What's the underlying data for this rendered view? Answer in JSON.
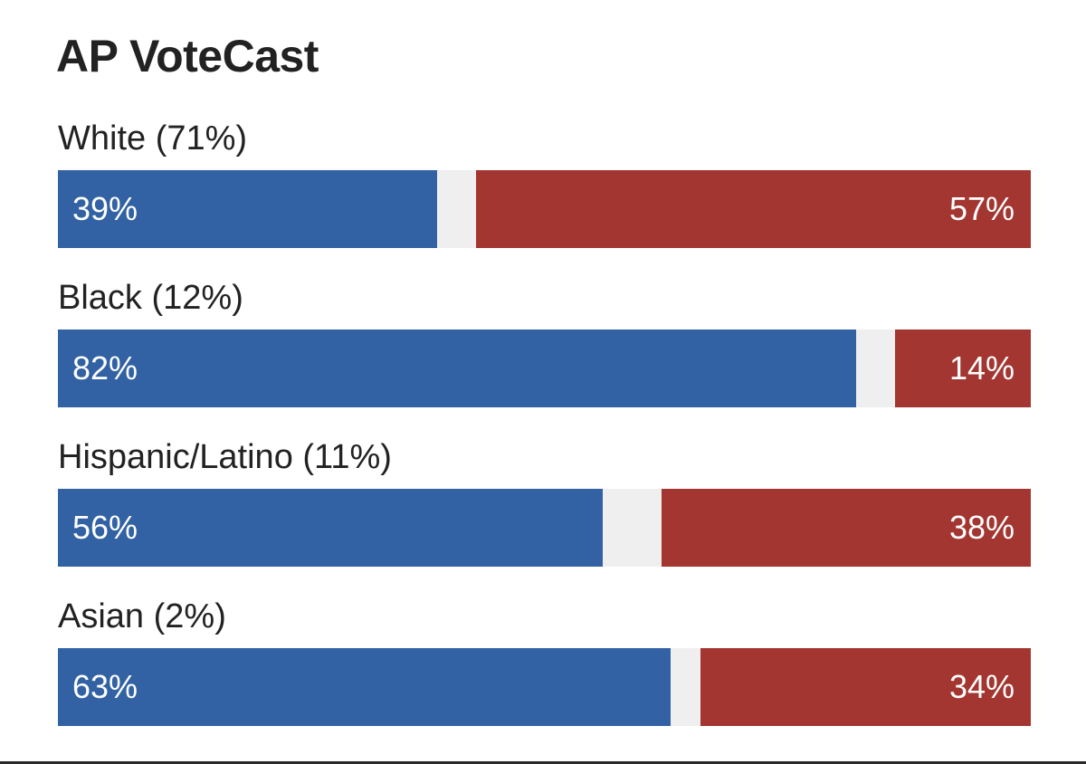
{
  "title": "AP VoteCast",
  "colors": {
    "democrat": "#3262a3",
    "republican": "#a33630",
    "other": "#efefef"
  },
  "chart_data": {
    "type": "bar",
    "orientation": "horizontal-stacked",
    "title": "AP VoteCast",
    "unit": "%",
    "xlim": [
      0,
      100
    ],
    "categories": [
      "White (71%)",
      "Black (12%)",
      "Hispanic/Latino (11%)",
      "Asian (2%)"
    ],
    "series": [
      {
        "color": "#3262a3",
        "values": [
          39,
          82,
          56,
          63
        ],
        "labels": [
          "39%",
          "82%",
          "56%",
          "63%"
        ]
      },
      {
        "color": "#a33630",
        "values": [
          57,
          14,
          38,
          34
        ],
        "labels": [
          "57%",
          "14%",
          "38%",
          "34%"
        ]
      }
    ]
  }
}
